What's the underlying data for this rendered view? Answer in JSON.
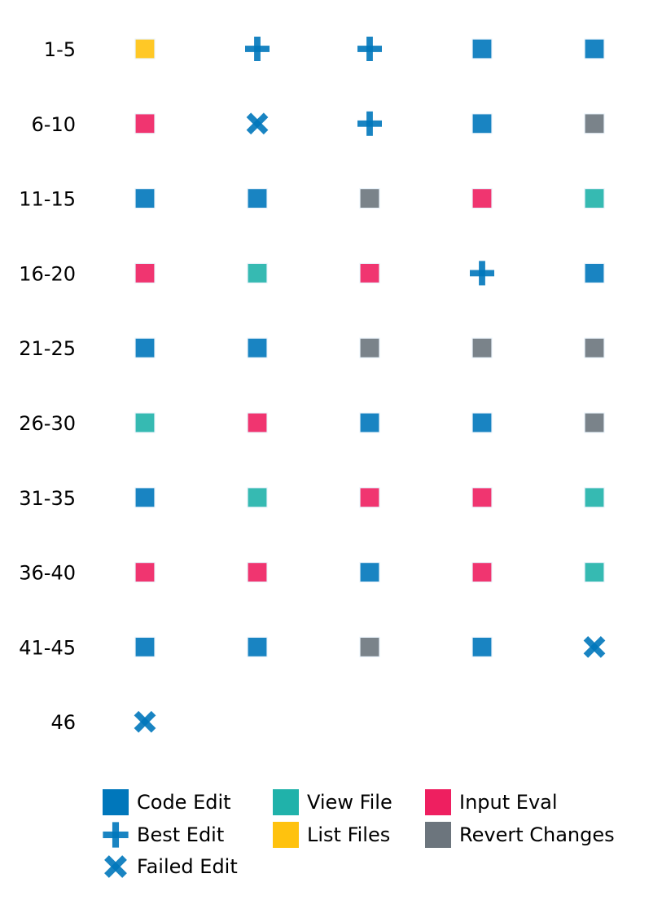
{
  "chart_data": {
    "type": "scatter",
    "title": "",
    "xlabel": "",
    "ylabel": "",
    "columns_per_row": 5,
    "row_labels": [
      "1-5",
      "6-10",
      "11-15",
      "16-20",
      "21-25",
      "26-30",
      "31-35",
      "36-40",
      "41-45",
      "46"
    ],
    "steps": [
      "list_files",
      "best_edit",
      "best_edit",
      "code_edit",
      "code_edit",
      "input_eval",
      "failed_edit",
      "best_edit",
      "code_edit",
      "revert_changes",
      "code_edit",
      "code_edit",
      "revert_changes",
      "input_eval",
      "view_file",
      "input_eval",
      "view_file",
      "input_eval",
      "best_edit",
      "code_edit",
      "code_edit",
      "code_edit",
      "revert_changes",
      "revert_changes",
      "revert_changes",
      "view_file",
      "input_eval",
      "code_edit",
      "code_edit",
      "revert_changes",
      "code_edit",
      "view_file",
      "input_eval",
      "input_eval",
      "view_file",
      "input_eval",
      "input_eval",
      "code_edit",
      "input_eval",
      "view_file",
      "code_edit",
      "code_edit",
      "revert_changes",
      "code_edit",
      "failed_edit",
      "failed_edit"
    ],
    "legend": [
      {
        "key": "code_edit",
        "label": "Code Edit",
        "shape": "square",
        "color": "#0077bb"
      },
      {
        "key": "best_edit",
        "label": "Best Edit",
        "shape": "plus",
        "color": "#0077bb"
      },
      {
        "key": "failed_edit",
        "label": "Failed Edit",
        "shape": "x",
        "color": "#0077bb"
      },
      {
        "key": "view_file",
        "label": "View File",
        "shape": "square",
        "color": "#20b2aa"
      },
      {
        "key": "list_files",
        "label": "List Files",
        "shape": "square",
        "color": "#ffc20e"
      },
      {
        "key": "input_eval",
        "label": "Input Eval",
        "shape": "square",
        "color": "#ee1f60"
      },
      {
        "key": "revert_changes",
        "label": "Revert Changes",
        "shape": "square",
        "color": "#6c757d"
      }
    ],
    "legend_position": "bottom"
  }
}
